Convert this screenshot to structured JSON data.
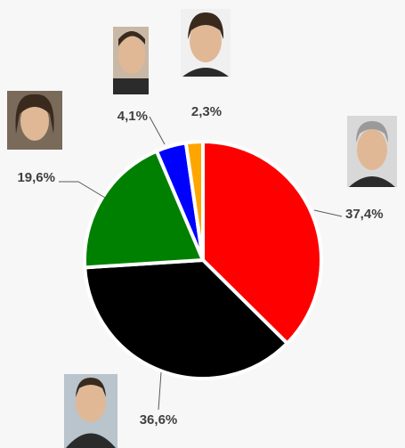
{
  "chart_data": {
    "type": "pie",
    "categories": [
      null,
      null,
      null,
      null,
      null
    ],
    "values": [
      37.4,
      36.6,
      19.6,
      4.1,
      2.3
    ],
    "value_labels": [
      "37,4%",
      "36,6%",
      "19,6%",
      "4,1%",
      "2,3%"
    ],
    "colors": [
      "#ff0000",
      "#000000",
      "#008000",
      "#0000ff",
      "#ffa500"
    ]
  }
}
